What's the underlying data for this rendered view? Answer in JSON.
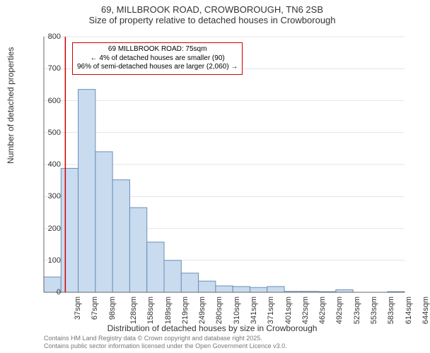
{
  "title": {
    "line1": "69, MILLBROOK ROAD, CROWBOROUGH, TN6 2SB",
    "line2": "Size of property relative to detached houses in Crowborough"
  },
  "ylabel": "Number of detached properties",
  "xlabel": "Distribution of detached houses by size in Crowborough",
  "histogram": {
    "type": "histogram",
    "bar_fill": "#c9dbef",
    "bar_stroke": "#6b8fb5",
    "bar_stroke_width": 1,
    "background_color": "#ffffff",
    "grid_color": "#cccccc",
    "axis_color": "#666666",
    "ylim": [
      0,
      800
    ],
    "ytick_step": 100,
    "categories": [
      "37sqm",
      "67sqm",
      "98sqm",
      "128sqm",
      "158sqm",
      "189sqm",
      "219sqm",
      "249sqm",
      "280sqm",
      "310sqm",
      "341sqm",
      "371sqm",
      "401sqm",
      "432sqm",
      "462sqm",
      "492sqm",
      "523sqm",
      "553sqm",
      "583sqm",
      "614sqm",
      "644sqm"
    ],
    "values": [
      48,
      388,
      635,
      440,
      352,
      265,
      157,
      100,
      60,
      35,
      20,
      18,
      15,
      18,
      3,
      3,
      2,
      8,
      0,
      0,
      2
    ]
  },
  "marker": {
    "color": "#cc0000",
    "x_index": 1.25
  },
  "annotation": {
    "line1": "69 MILLBROOK ROAD: 75sqm",
    "line2": "← 4% of detached houses are smaller (90)",
    "line3": "96% of semi-detached houses are larger (2,060) →",
    "border_color": "#cc0000"
  },
  "footnote": {
    "line1": "Contains HM Land Registry data © Crown copyright and database right 2025.",
    "line2": "Contains public sector information licensed under the Open Government Licence v3.0."
  }
}
